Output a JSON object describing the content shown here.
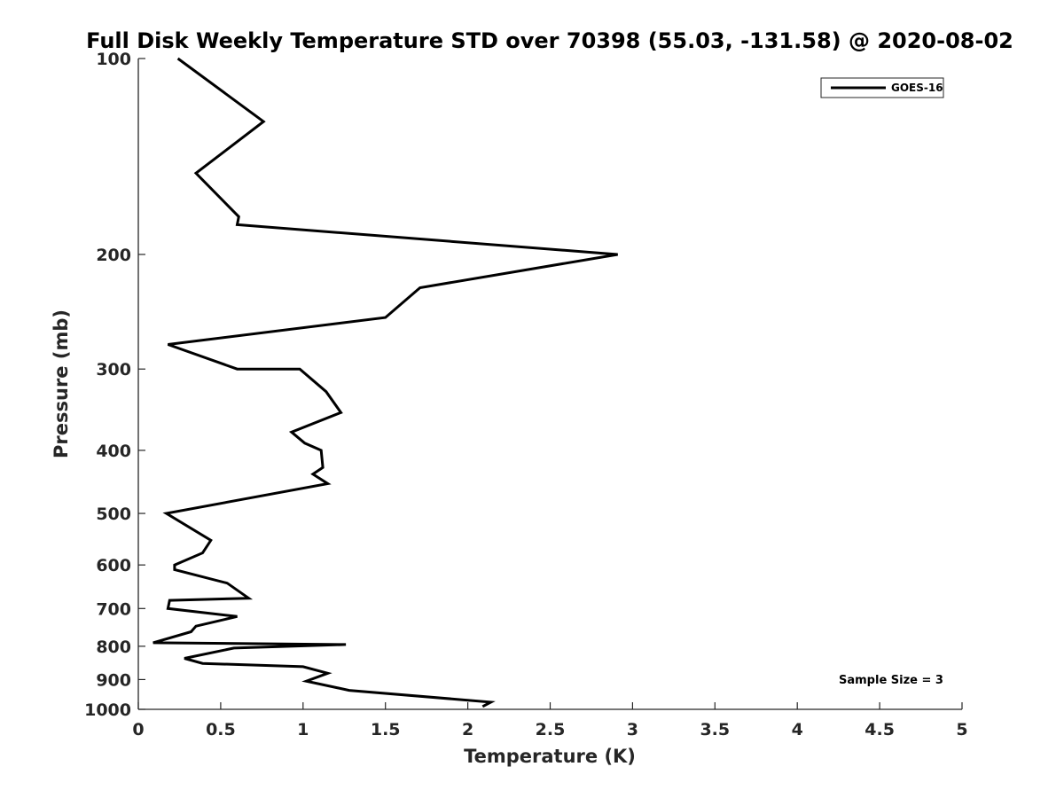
{
  "chart_data": {
    "type": "line",
    "title": "Full Disk Weekly Temperature STD over 70398 (55.03, -131.58) @ 2020-08-02",
    "xlabel": "Temperature (K)",
    "ylabel": "Pressure (mb)",
    "xlim": [
      0,
      5
    ],
    "ylim": [
      100,
      1000
    ],
    "y_scale": "log",
    "y_reversed": true,
    "x_ticks": [
      "0",
      "0.5",
      "1",
      "1.5",
      "2",
      "2.5",
      "3",
      "3.5",
      "4",
      "4.5",
      "5"
    ],
    "y_ticks": [
      "100",
      "200",
      "300",
      "400",
      "500",
      "600",
      "700",
      "800",
      "900",
      "1000"
    ],
    "grid": false,
    "legend": {
      "position": "top-right",
      "entries": [
        "GOES-16"
      ]
    },
    "annotation": "Sample Size = 3",
    "series": [
      {
        "name": "GOES-16",
        "color": "#000000",
        "points": [
          [
            0.24,
            100
          ],
          [
            0.76,
            125
          ],
          [
            0.35,
            150
          ],
          [
            0.61,
            175
          ],
          [
            0.6,
            180
          ],
          [
            2.91,
            200
          ],
          [
            1.71,
            225
          ],
          [
            1.5,
            250
          ],
          [
            0.18,
            275
          ],
          [
            0.6,
            300
          ],
          [
            0.98,
            300
          ],
          [
            1.14,
            325
          ],
          [
            1.23,
            350
          ],
          [
            0.93,
            375
          ],
          [
            1.01,
            390
          ],
          [
            1.11,
            400
          ],
          [
            1.12,
            425
          ],
          [
            1.06,
            435
          ],
          [
            1.15,
            450
          ],
          [
            0.17,
            500
          ],
          [
            0.44,
            550
          ],
          [
            0.39,
            575
          ],
          [
            0.22,
            600
          ],
          [
            0.22,
            610
          ],
          [
            0.54,
            640
          ],
          [
            0.67,
            675
          ],
          [
            0.19,
            680
          ],
          [
            0.18,
            700
          ],
          [
            0.6,
            720
          ],
          [
            0.35,
            745
          ],
          [
            0.32,
            760
          ],
          [
            0.09,
            790
          ],
          [
            1.26,
            795
          ],
          [
            0.58,
            805
          ],
          [
            0.28,
            835
          ],
          [
            0.39,
            850
          ],
          [
            1.0,
            860
          ],
          [
            1.15,
            880
          ],
          [
            1.02,
            905
          ],
          [
            1.28,
            935
          ],
          [
            2.14,
            975
          ],
          [
            2.09,
            990
          ]
        ]
      }
    ]
  }
}
